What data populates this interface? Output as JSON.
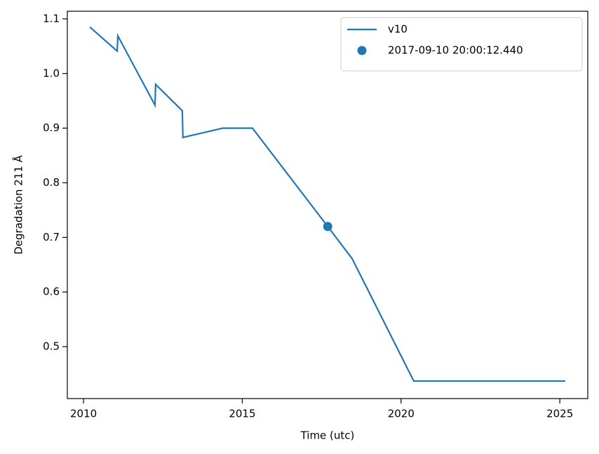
{
  "chart_data": {
    "type": "line",
    "xlabel": "Time (utc)",
    "ylabel": "Degradation 211 Å",
    "xlim": [
      2009.49,
      2025.88
    ],
    "xticks": [
      2010,
      2015,
      2020,
      2025
    ],
    "ylim": [
      0.405,
      1.114
    ],
    "yticks": [
      0.5,
      0.6,
      0.7,
      0.8,
      0.9,
      {
        "value": 1,
        "label": "1.0"
      },
      1.1
    ],
    "legend": "upper right",
    "series": [
      {
        "name": "v10",
        "color": "#1f77b4",
        "kind": "line",
        "x": [
          2010.2,
          2011.06,
          2011.08,
          2012.25,
          2012.27,
          2013.11,
          2013.13,
          2014.39,
          2015.32,
          2017.69,
          2018.46,
          2020.4,
          2025.17
        ],
        "values": [
          1.085,
          1.041,
          1.069,
          0.942,
          0.98,
          0.932,
          0.883,
          0.9,
          0.9,
          0.72,
          0.661,
          0.437,
          0.437
        ]
      },
      {
        "name": "2017-09-10 20:00:12.440",
        "color": "#1f77b4",
        "kind": "scatter",
        "x": [
          2017.69
        ],
        "values": [
          0.72
        ]
      }
    ]
  }
}
